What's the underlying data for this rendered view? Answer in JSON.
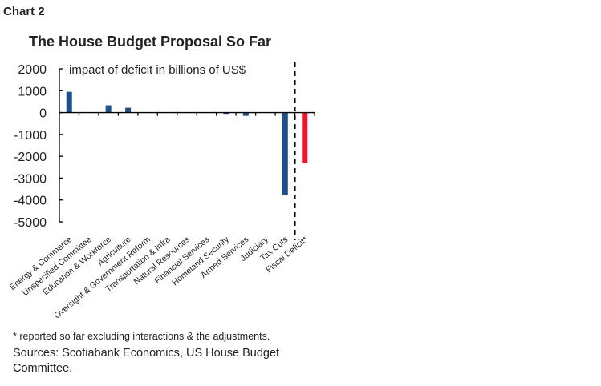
{
  "chart_label": "Chart 2",
  "chart_data": {
    "type": "bar",
    "title": "The House Budget Proposal So Far",
    "annotation": "impact of deficit in billions of US$",
    "categories": [
      "Energy & Commerce",
      "Unspecified Committee",
      "Education & Workforce",
      "Agriculture",
      "Oversight & Government Reform",
      "Transportation & Infra",
      "Natural Resources",
      "Financial Services",
      "Homeland Security",
      "Armed Services",
      "Judiciary",
      "Tax Cuts",
      "Fiscal Deficit*"
    ],
    "values": [
      950,
      0,
      330,
      220,
      0,
      0,
      0,
      0,
      -60,
      -150,
      0,
      -3760,
      -2300
    ],
    "bar_colors": [
      "#1f4e8c",
      "#1f4e8c",
      "#1f4e8c",
      "#1f4e8c",
      "#1f4e8c",
      "#1f4e8c",
      "#1f4e8c",
      "#1f4e8c",
      "#1f4e8c",
      "#1f4e8c",
      "#1f4e8c",
      "#1f4e8c",
      "#e8192c"
    ],
    "ylim": [
      -5000,
      2000
    ],
    "yticks": [
      "2000",
      "1000",
      "0",
      "-1000",
      "-2000",
      "-3000",
      "-4000",
      "-5000"
    ],
    "ytick_values": [
      2000,
      1000,
      0,
      -1000,
      -2000,
      -3000,
      -4000,
      -5000
    ],
    "separator": "dashed vertical line before Fiscal Deficit*",
    "grid": false,
    "legend": "none"
  },
  "footnote": "* reported so far excluding interactions & the adjustments.",
  "source": "Sources: Scotiabank Economics, US House Budget Committee."
}
